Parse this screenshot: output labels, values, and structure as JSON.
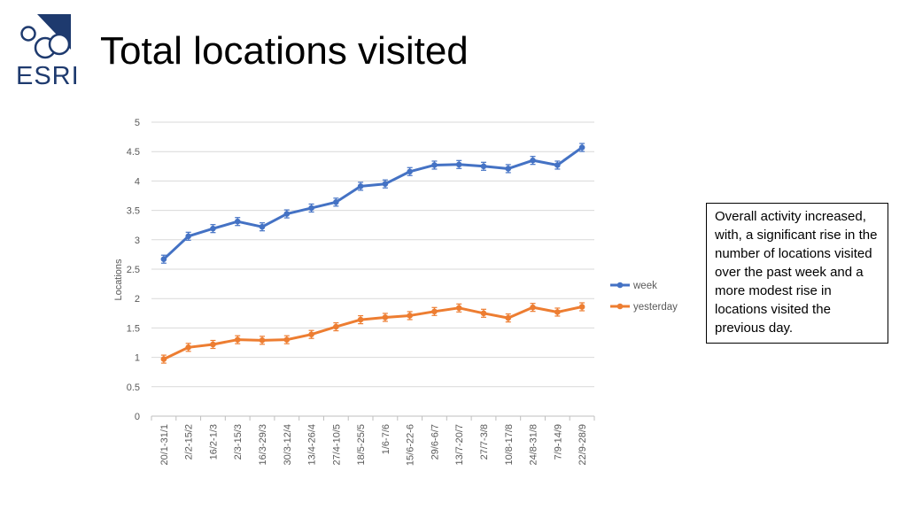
{
  "slide": {
    "title": "Total locations visited",
    "logo_text": "ESRI",
    "note": "Overall activity increased, with, a significant rise in the number of locations visited over the past week and a more modest rise in locations visited the previous day."
  },
  "colors": {
    "week": "#4472c4",
    "yesterday": "#ed7d31",
    "logo": "#1e3a6e",
    "grid": "#d9d9d9"
  },
  "chart_data": {
    "type": "line",
    "title": "",
    "xlabel": "",
    "ylabel": "Locations",
    "ylim": [
      0,
      5
    ],
    "yticks": [
      0,
      0.5,
      1,
      1.5,
      2,
      2.5,
      3,
      3.5,
      4,
      4.5,
      5
    ],
    "ytick_labels": [
      "0",
      "0.5",
      "1",
      "1.5",
      "2",
      "2.5",
      "3",
      "3.5",
      "4",
      "4.5",
      "5"
    ],
    "grid": true,
    "legend_position": "right",
    "categories": [
      "20/1-31/1",
      "2/2-15/2",
      "16/2-1/3",
      "2/3-15/3",
      "16/3-29/3",
      "30/3-12/4",
      "13/4-26/4",
      "27/4-10/5",
      "18/5-25/5",
      "1/6-7/6",
      "15/6-22-6",
      "29/6-6/7",
      "13/7-20/7",
      "27/7-3/8",
      "10/8-17/8",
      "24/8-31/8",
      "7/9-14/9",
      "22/9-28/9"
    ],
    "series": [
      {
        "name": "week",
        "values": [
          2.67,
          3.06,
          3.19,
          3.31,
          3.22,
          3.44,
          3.54,
          3.64,
          3.91,
          3.95,
          4.16,
          4.27,
          4.28,
          4.25,
          4.21,
          4.35,
          4.27,
          4.57
        ]
      },
      {
        "name": "yesterday",
        "values": [
          0.97,
          1.17,
          1.22,
          1.3,
          1.29,
          1.3,
          1.39,
          1.52,
          1.64,
          1.68,
          1.71,
          1.78,
          1.84,
          1.75,
          1.67,
          1.85,
          1.77,
          1.86
        ]
      }
    ]
  }
}
